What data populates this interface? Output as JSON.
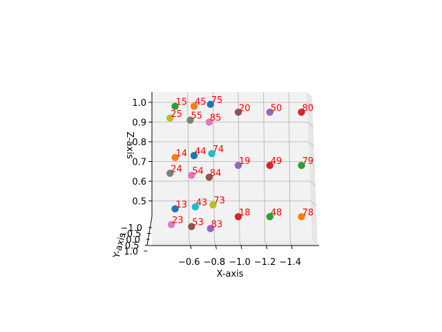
{
  "chart_data": {
    "type": "scatter",
    "title": "",
    "xlabel": "X-axis",
    "ylabel": "Y-axis",
    "zlabel": "Z-axis",
    "x_ticks": [
      "−0.6",
      "−0.8",
      "−1.0",
      "−1.2",
      "−1.4"
    ],
    "y_ticks": [
      "−1.0",
      "−0.5",
      "0.0",
      "0.5",
      "1.0"
    ],
    "z_ticks": [
      "0.5",
      "0.6",
      "0.7",
      "0.8",
      "0.9",
      "1.0"
    ],
    "label_color": "#ff0000",
    "points": [
      {
        "label": "15",
        "x": -0.5,
        "z": 0.98,
        "color": "#2ca02c"
      },
      {
        "label": "45",
        "x": -0.65,
        "z": 0.98,
        "color": "#ff7f0e"
      },
      {
        "label": "75",
        "x": -0.78,
        "z": 0.99,
        "color": "#1f77b4"
      },
      {
        "label": "20",
        "x": -1.0,
        "z": 0.95,
        "color": "#8c564b"
      },
      {
        "label": "50",
        "x": -1.25,
        "z": 0.95,
        "color": "#9467bd"
      },
      {
        "label": "80",
        "x": -1.5,
        "z": 0.95,
        "color": "#d62728"
      },
      {
        "label": "25",
        "x": -0.46,
        "z": 0.92,
        "color": "#bcbd22"
      },
      {
        "label": "55",
        "x": -0.62,
        "z": 0.91,
        "color": "#7f7f7f"
      },
      {
        "label": "85",
        "x": -0.77,
        "z": 0.9,
        "color": "#e377c2"
      },
      {
        "label": "14",
        "x": -0.5,
        "z": 0.72,
        "color": "#ff7f0e"
      },
      {
        "label": "44",
        "x": -0.65,
        "z": 0.73,
        "color": "#1f77b4"
      },
      {
        "label": "74",
        "x": -0.79,
        "z": 0.74,
        "color": "#17becf"
      },
      {
        "label": "19",
        "x": -1.0,
        "z": 0.68,
        "color": "#9467bd"
      },
      {
        "label": "49",
        "x": -1.25,
        "z": 0.68,
        "color": "#d62728"
      },
      {
        "label": "79",
        "x": -1.5,
        "z": 0.68,
        "color": "#2ca02c"
      },
      {
        "label": "24",
        "x": -0.46,
        "z": 0.64,
        "color": "#7f7f7f"
      },
      {
        "label": "54",
        "x": -0.63,
        "z": 0.63,
        "color": "#e377c2"
      },
      {
        "label": "84",
        "x": -0.77,
        "z": 0.62,
        "color": "#8c564b"
      },
      {
        "label": "13",
        "x": -0.5,
        "z": 0.46,
        "color": "#1f77b4"
      },
      {
        "label": "43",
        "x": -0.66,
        "z": 0.47,
        "color": "#17becf"
      },
      {
        "label": "73",
        "x": -0.8,
        "z": 0.48,
        "color": "#bcbd22"
      },
      {
        "label": "18",
        "x": -1.0,
        "z": 0.42,
        "color": "#d62728"
      },
      {
        "label": "48",
        "x": -1.25,
        "z": 0.42,
        "color": "#2ca02c"
      },
      {
        "label": "78",
        "x": -1.5,
        "z": 0.42,
        "color": "#ff7f0e"
      },
      {
        "label": "23",
        "x": -0.47,
        "z": 0.38,
        "color": "#e377c2"
      },
      {
        "label": "53",
        "x": -0.63,
        "z": 0.37,
        "color": "#8c564b"
      },
      {
        "label": "83",
        "x": -0.78,
        "z": 0.36,
        "color": "#9467bd"
      }
    ]
  }
}
